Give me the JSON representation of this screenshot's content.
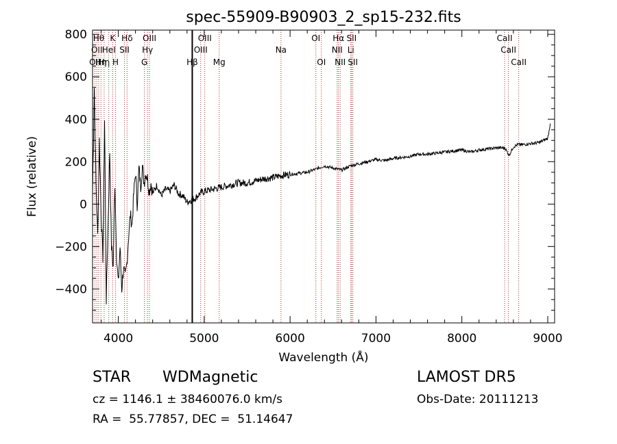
{
  "chart_data": {
    "type": "line",
    "title": "spec-55909-B90903_2_sp15-232.fits",
    "xlabel": "Wavelength (Å)",
    "ylabel": "Flux (relative)",
    "xlim": [
      3700,
      9080
    ],
    "ylim": [
      -560,
      820
    ],
    "x_ticks": [
      4000,
      5000,
      6000,
      7000,
      8000,
      9000
    ],
    "y_ticks": [
      -400,
      -200,
      0,
      200,
      400,
      600,
      800
    ],
    "grid": false,
    "marker_wavelength": 4861,
    "series": [
      {
        "x": [
          3700,
          3720,
          3740,
          3760,
          3780,
          3800,
          3820,
          3840,
          3860,
          3880,
          3900,
          3920,
          3940,
          3960,
          3980,
          4000,
          4020,
          4040,
          4060,
          4080,
          4100,
          4120,
          4140,
          4160,
          4180,
          4200,
          4220,
          4240,
          4260,
          4280,
          4300,
          4320,
          4340,
          4360,
          4380,
          4400,
          4450,
          4500,
          4550,
          4600,
          4650,
          4700,
          4750,
          4800,
          4850,
          4900,
          4950,
          5000,
          5100,
          5200,
          5300,
          5400,
          5500,
          5600,
          5700,
          5800,
          5900,
          6000,
          6100,
          6200,
          6300,
          6400,
          6500,
          6600,
          6700,
          6800,
          6900,
          7000,
          7100,
          7200,
          7300,
          7400,
          7500,
          7600,
          7700,
          7800,
          7900,
          8000,
          8100,
          8200,
          8300,
          8400,
          8500,
          8550,
          8600,
          8650,
          8700,
          8800,
          8900,
          9000,
          9030
        ],
        "y": [
          50,
          550,
          100,
          -150,
          300,
          -50,
          -250,
          400,
          -450,
          -100,
          250,
          -200,
          -300,
          100,
          -250,
          -380,
          -200,
          -400,
          -300,
          -350,
          -280,
          -150,
          -50,
          -100,
          50,
          150,
          0,
          170,
          80,
          180,
          100,
          150,
          120,
          60,
          100,
          50,
          90,
          40,
          70,
          60,
          90,
          50,
          40,
          10,
          20,
          30,
          50,
          60,
          70,
          80,
          90,
          100,
          100,
          110,
          120,
          125,
          135,
          140,
          145,
          150,
          165,
          180,
          170,
          160,
          180,
          190,
          200,
          210,
          205,
          215,
          220,
          225,
          235,
          235,
          240,
          245,
          250,
          255,
          245,
          255,
          260,
          265,
          265,
          230,
          270,
          280,
          280,
          285,
          290,
          310,
          380
        ]
      }
    ],
    "lines": [
      {
        "wavelength": 3727,
        "label": "OII",
        "row": 3
      },
      {
        "wavelength": 3750,
        "label": "OII",
        "row": 2
      },
      {
        "wavelength": 3771,
        "label": "Hθ",
        "row": 1
      },
      {
        "wavelength": 3798,
        "label": "Hη",
        "row": 3
      },
      {
        "wavelength": 3835,
        "label": "Hη",
        "row": 3
      },
      {
        "wavelength": 3889,
        "label": "HeI",
        "row": 2
      },
      {
        "wavelength": 3934,
        "label": "K",
        "row": 1
      },
      {
        "wavelength": 3968,
        "label": "H",
        "row": 3
      },
      {
        "wavelength": 4102,
        "label": "Hδ",
        "row": 1
      },
      {
        "wavelength": 4072,
        "label": "SII",
        "row": 2
      },
      {
        "wavelength": 4304,
        "label": "G",
        "row": 3
      },
      {
        "wavelength": 4340,
        "label": "Hγ",
        "row": 2
      },
      {
        "wavelength": 4363,
        "label": "OIII",
        "row": 1
      },
      {
        "wavelength": 4861,
        "label": "Hβ",
        "row": 3
      },
      {
        "wavelength": 4959,
        "label": "OIII",
        "row": 2
      },
      {
        "wavelength": 5007,
        "label": "OIII",
        "row": 1
      },
      {
        "wavelength": 5175,
        "label": "Mg",
        "row": 3
      },
      {
        "wavelength": 5894,
        "label": "Na",
        "row": 2
      },
      {
        "wavelength": 6300,
        "label": "OI",
        "row": 1
      },
      {
        "wavelength": 6364,
        "label": "OI",
        "row": 3
      },
      {
        "wavelength": 6548,
        "label": "NII",
        "row": 2
      },
      {
        "wavelength": 6563,
        "label": "Hα",
        "row": 1
      },
      {
        "wavelength": 6583,
        "label": "NII",
        "row": 3
      },
      {
        "wavelength": 6707,
        "label": "Li",
        "row": 2
      },
      {
        "wavelength": 6716,
        "label": "SII",
        "row": 1
      },
      {
        "wavelength": 6731,
        "label": "SII",
        "row": 3
      },
      {
        "wavelength": 8498,
        "label": "CaII",
        "row": 1
      },
      {
        "wavelength": 8542,
        "label": "CaII",
        "row": 2
      },
      {
        "wavelength": 8662,
        "label": "CaII",
        "row": 3
      }
    ]
  },
  "info": {
    "class": "STAR",
    "subclass": "WDMagnetic",
    "survey": "LAMOST DR5",
    "cz_line": "cz = 1146.1 ± 38460076.0 km/s",
    "obs_date": "Obs-Date: 20111213",
    "radec": "RA =  55.77857, DEC =  51.14647"
  }
}
